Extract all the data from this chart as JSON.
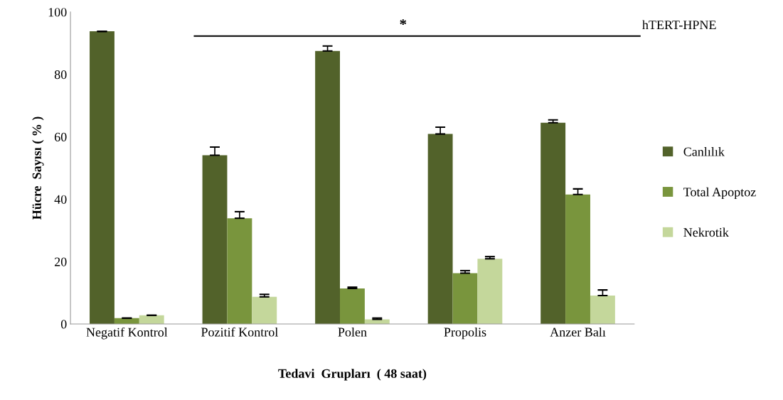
{
  "chart_data": {
    "type": "bar",
    "xlabel": "Tedavi  Grupları  ( 48 saat)",
    "ylabel": "Hücre  Sayısı ( % )",
    "categories": [
      "Negatif Kontrol",
      "Pozitif Kontrol",
      "Polen",
      "Propolis",
      "Anzer Balı"
    ],
    "series": [
      {
        "name": "Canlılık",
        "color": "#52622a",
        "values": [
          93.8,
          54.1,
          87.5,
          60.9,
          64.5
        ],
        "errors": [
          [
            93.8,
            93.8
          ],
          [
            54.1,
            56.7
          ],
          [
            87.5,
            89.1
          ],
          [
            60.9,
            63.1
          ],
          [
            64.5,
            65.4
          ]
        ]
      },
      {
        "name": "Total Apoptoz",
        "color": "#79953d",
        "values": [
          1.9,
          33.9,
          11.4,
          16.3,
          41.5
        ],
        "errors": [
          [
            1.9,
            1.9
          ],
          [
            33.9,
            36.0
          ],
          [
            11.4,
            11.8
          ],
          [
            16.3,
            17.1
          ],
          [
            41.5,
            43.3
          ]
        ]
      },
      {
        "name": "Nekrotik",
        "color": "#c4d79b",
        "values": [
          2.8,
          8.7,
          1.5,
          20.9,
          9.1
        ],
        "errors": [
          [
            2.8,
            2.8
          ],
          [
            8.7,
            9.5
          ],
          [
            1.5,
            1.9
          ],
          [
            20.9,
            21.6
          ],
          [
            9.1,
            10.9
          ]
        ]
      }
    ],
    "ylim": [
      0,
      100
    ],
    "yticks": [
      0,
      20,
      40,
      60,
      80,
      100
    ],
    "annotations": [
      "*",
      "hTERT-HPNE"
    ],
    "grid": false,
    "legend": "right"
  }
}
